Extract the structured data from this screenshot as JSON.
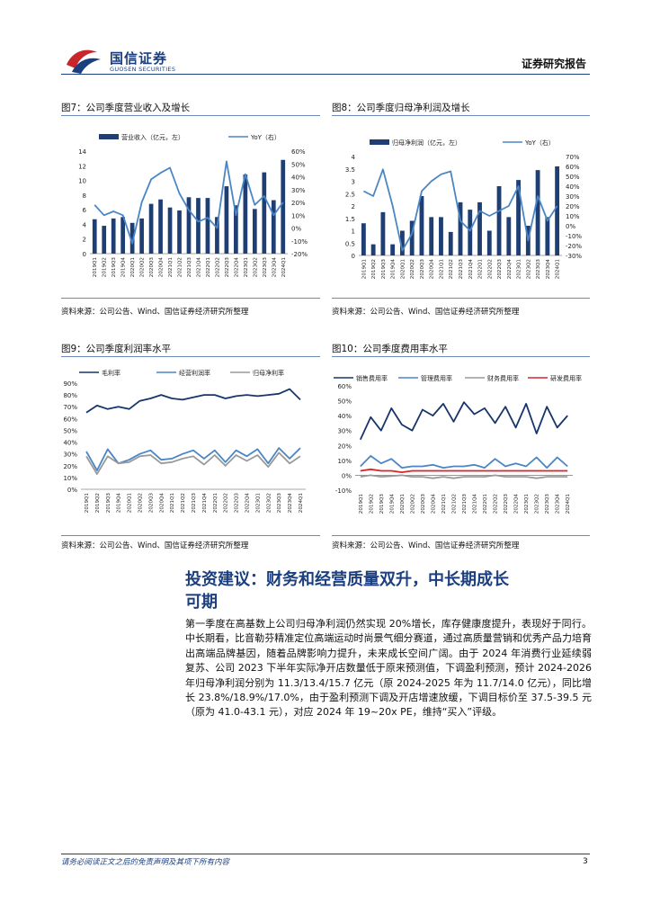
{
  "header": {
    "logo_cn": "国信证券",
    "logo_en": "GUOSEN SECURITIES",
    "report_type": "证券研究报告"
  },
  "figures": {
    "fig7": {
      "title": "图7：公司季度营业收入及增长",
      "source": "资料来源：公司公告、Wind、国信证券经济研究所整理"
    },
    "fig8": {
      "title": "图8：公司季度归母净利润及增长",
      "source": "资料来源：公司公告、Wind、国信证券经济研究所整理"
    },
    "fig9": {
      "title": "图9：公司季度利润率水平",
      "source": "资料来源：公司公告、Wind、国信证券经济研究所整理"
    },
    "fig10": {
      "title": "图10：公司季度费用率水平",
      "source": "资料来源：公司公告、Wind、国信证券经济研究所整理"
    }
  },
  "section": {
    "title_line1": "投资建议：财务和经营质量双升，中长期成长",
    "title_line2": "可期",
    "paragraph": "第一季度在高基数上公司归母净利润仍然实现 20%增长，库存健康度提升，表现好于同行。中长期看，比音勒芬精准定位高端运动时尚景气细分赛道，通过高质量营销和优秀产品力培育出高端品牌基因，随着品牌影响力提升，未来成长空间广阔。由于 2024 年消费行业延续弱复苏、公司 2023 下半年实际净开店数量低于原来预测值，下调盈利预测，预计 2024-2026 年归母净利润分别为 11.3/13.4/15.7 亿元（原 2024-2025 年为 11.7/14.0 亿元），同比增长 23.8%/18.9%/17.0%，由于盈利预测下调及开店增速放缓，下调目标价至 37.5-39.5 元（原为 41.0-43.1 元），对应 2024 年 19~20x PE，维持“买入”评级。"
  },
  "footer": {
    "disclaimer": "请务必阅读正文之后的免责声明及其项下所有内容",
    "page_number": "3"
  },
  "colors": {
    "brand": "#1b3f7e",
    "bar": "#1f3f74",
    "line": "#4a86c5",
    "gray": "#9a9a9a",
    "red": "#d7262b",
    "navy": "#17356b"
  },
  "chart_data": [
    {
      "id": "fig7",
      "type": "bar",
      "categories": [
        "2019Q1",
        "2019Q2",
        "2019Q3",
        "2019Q4",
        "2020Q1",
        "2020Q2",
        "2020Q3",
        "2020Q4",
        "2021Q1",
        "2021Q2",
        "2021Q3",
        "2021Q4",
        "2022Q1",
        "2022Q2",
        "2022Q3",
        "2022Q4",
        "2023Q1",
        "2023Q2",
        "2023Q3",
        "2023Q4",
        "2024Q1"
      ],
      "series": [
        {
          "name": "营业收入（亿元，左）",
          "axis": "left",
          "kind": "bar",
          "values": [
            4.7,
            3.8,
            4.8,
            5.0,
            4.2,
            4.8,
            6.8,
            7.4,
            6.3,
            5.9,
            7.7,
            7.6,
            7.6,
            5.0,
            9.2,
            6.6,
            10.8,
            6.1,
            11.1,
            7.3,
            12.8
          ]
        },
        {
          "name": "YoY（右）",
          "axis": "right",
          "kind": "line",
          "values": [
            18,
            10,
            13,
            10,
            -12,
            20,
            38,
            43,
            47,
            27,
            14,
            5,
            8,
            0,
            52,
            10,
            42,
            18,
            25,
            10,
            20
          ]
        }
      ],
      "y_left": {
        "min": 0,
        "max": 14,
        "ticks": [
          0,
          2,
          4,
          6,
          8,
          10,
          12,
          14
        ]
      },
      "y_right": {
        "min": -20,
        "max": 60,
        "ticks": [
          "-20%",
          "-10%",
          "0%",
          "10%",
          "20%",
          "30%",
          "40%",
          "50%",
          "60%"
        ]
      }
    },
    {
      "id": "fig8",
      "type": "bar",
      "categories": [
        "2019Q1",
        "2019Q2",
        "2019Q3",
        "2019Q4",
        "2020Q1",
        "2020Q2",
        "2020Q3",
        "2020Q4",
        "2021Q1",
        "2021Q2",
        "2021Q3",
        "2021Q4",
        "2022Q1",
        "2022Q2",
        "2022Q3",
        "2022Q4",
        "2023Q1",
        "2023Q2",
        "2023Q3",
        "2023Q4",
        "2024Q1"
      ],
      "series": [
        {
          "name": "归母净利润（亿元，左）",
          "axis": "left",
          "kind": "bar",
          "values": [
            1.3,
            0.45,
            1.75,
            0.45,
            1.0,
            1.4,
            2.4,
            1.55,
            1.55,
            0.95,
            2.15,
            1.85,
            2.15,
            1.0,
            2.8,
            1.55,
            3.05,
            1.2,
            3.45,
            1.55,
            3.6
          ]
        },
        {
          "name": "YoY（右）",
          "axis": "right",
          "kind": "line",
          "values": [
            35,
            30,
            57,
            20,
            -25,
            -8,
            35,
            45,
            52,
            55,
            5,
            -5,
            15,
            10,
            15,
            20,
            40,
            -15,
            30,
            5,
            20
          ]
        }
      ],
      "y_left": {
        "min": 0,
        "max": 4,
        "ticks": [
          0,
          0.5,
          1,
          1.5,
          2,
          2.5,
          3,
          3.5,
          4
        ]
      },
      "y_right": {
        "min": -30,
        "max": 70,
        "ticks": [
          "-30%",
          "-20%",
          "-10%",
          "0%",
          "10%",
          "20%",
          "30%",
          "40%",
          "50%",
          "60%",
          "70%"
        ]
      }
    },
    {
      "id": "fig9",
      "type": "line",
      "categories": [
        "2019Q1",
        "2019Q2",
        "2019Q3",
        "2019Q4",
        "2020Q1",
        "2020Q2",
        "2020Q3",
        "2020Q4",
        "2021Q1",
        "2021Q2",
        "2021Q3",
        "2021Q4",
        "2022Q1",
        "2022Q2",
        "2022Q3",
        "2022Q4",
        "2023Q1",
        "2023Q2",
        "2023Q3",
        "2023Q4",
        "2024Q1"
      ],
      "series": [
        {
          "name": "毛利率",
          "values": [
            65,
            71,
            68,
            70,
            68,
            75,
            77,
            80,
            77,
            76,
            78,
            80,
            80,
            77,
            79,
            80,
            79,
            80,
            81,
            85,
            76
          ]
        },
        {
          "name": "经营利润率",
          "values": [
            32,
            16,
            34,
            22,
            25,
            30,
            33,
            25,
            26,
            30,
            33,
            26,
            33,
            23,
            33,
            28,
            34,
            22,
            35,
            26,
            35
          ]
        },
        {
          "name": "归母净利率",
          "values": [
            28,
            13,
            28,
            22,
            23,
            28,
            29,
            22,
            23,
            26,
            28,
            21,
            29,
            20,
            29,
            24,
            29,
            19,
            31,
            22,
            28
          ]
        }
      ],
      "y": {
        "min": 0,
        "max": 90,
        "ticks": [
          "0%",
          "10%",
          "20%",
          "30%",
          "40%",
          "50%",
          "60%",
          "70%",
          "80%",
          "90%"
        ]
      }
    },
    {
      "id": "fig10",
      "type": "line",
      "categories": [
        "2019Q1",
        "2019Q2",
        "2019Q3",
        "2019Q4",
        "2020Q1",
        "2020Q2",
        "2020Q3",
        "2020Q4",
        "2021Q1",
        "2021Q2",
        "2021Q3",
        "2021Q4",
        "2022Q1",
        "2022Q2",
        "2022Q3",
        "2022Q4",
        "2023Q1",
        "2023Q2",
        "2023Q3",
        "2023Q4",
        "2024Q1"
      ],
      "series": [
        {
          "name": "销售费用率",
          "values": [
            24,
            39,
            30,
            45,
            34,
            30,
            44,
            40,
            48,
            36,
            49,
            41,
            45,
            35,
            46,
            32,
            48,
            28,
            46,
            32,
            40
          ]
        },
        {
          "name": "管理费用率",
          "values": [
            6,
            13,
            8,
            11,
            5,
            6,
            6,
            7,
            5,
            6,
            6,
            7,
            5,
            11,
            6,
            8,
            6,
            12,
            5,
            12,
            6
          ]
        },
        {
          "name": "财务费用率",
          "values": [
            -1,
            0,
            -1,
            -0.5,
            0,
            -1,
            -1,
            -2,
            -1,
            -2,
            -1,
            -1,
            -1,
            0,
            -1,
            -1,
            -1,
            -2,
            -1,
            -1,
            -1
          ]
        },
        {
          "name": "研发费用率",
          "values": [
            3,
            4,
            3,
            3,
            2,
            3,
            3,
            3,
            3,
            3,
            3,
            3,
            3,
            3,
            3,
            3,
            3,
            3,
            3,
            3,
            3
          ]
        }
      ],
      "y": {
        "min": -10,
        "max": 60,
        "ticks": [
          "-10%",
          "0%",
          "10%",
          "20%",
          "30%",
          "40%",
          "50%",
          "60%"
        ]
      }
    }
  ]
}
